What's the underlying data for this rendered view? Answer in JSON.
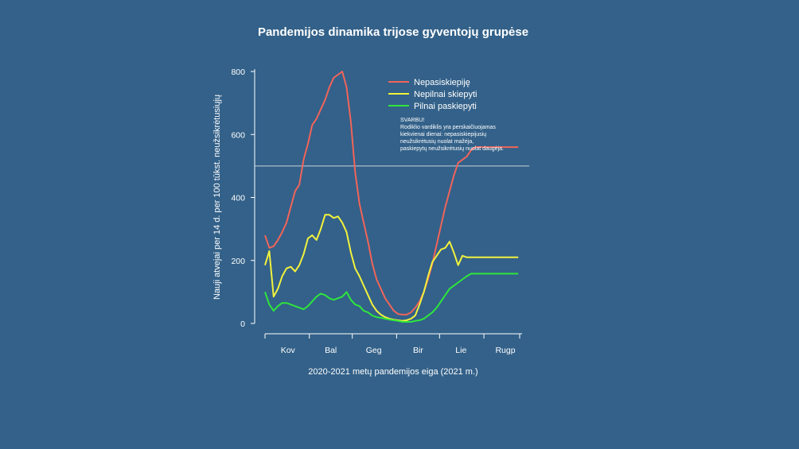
{
  "colors": {
    "background": "#336189",
    "nepasiskiepije": "#f0645a",
    "nepilnai": "#f2f23c",
    "pilnai": "#2ee63c",
    "axis": "#ffffff",
    "reference_line": "#c8d2dc"
  },
  "chart_data": {
    "type": "line",
    "title": "Pandemijos dinamika trijose gyventojų grupėse",
    "xlabel": "2020-2021 metų pandemijos eiga (2021 m.)",
    "ylabel": "Nauji atvejai per 14 d. per 100 tūkst. neužsikrėtusiųjų",
    "ylim": [
      0,
      800
    ],
    "yticks": [
      0,
      200,
      400,
      600,
      800
    ],
    "xlim": [
      0,
      178
    ],
    "month_labels": [
      {
        "label": "Kov",
        "day": 16
      },
      {
        "label": "Bal",
        "day": 46
      },
      {
        "label": "Geg",
        "day": 76
      },
      {
        "label": "Bir",
        "day": 107
      },
      {
        "label": "Lie",
        "day": 137
      },
      {
        "label": "Rugp",
        "day": 168
      }
    ],
    "month_boundaries": [
      0,
      31,
      61,
      92,
      122,
      153,
      178
    ],
    "reference_line": 500,
    "legend_position": "top-right",
    "x": [
      0,
      3,
      6,
      9,
      12,
      15,
      18,
      21,
      24,
      27,
      30,
      33,
      36,
      39,
      42,
      45,
      48,
      51,
      54,
      57,
      60,
      63,
      66,
      69,
      72,
      75,
      78,
      81,
      84,
      87,
      90,
      93,
      96,
      99,
      102,
      105,
      108,
      111,
      114,
      117,
      120,
      123,
      126,
      129,
      132,
      135,
      138,
      141,
      144,
      147,
      150,
      153,
      156,
      159,
      162,
      165,
      168,
      171,
      174,
      177
    ],
    "series": [
      {
        "name": "Nepasiskiepiję",
        "color_key": "nepasiskiepije",
        "values": [
          280,
          240,
          245,
          265,
          290,
          320,
          370,
          420,
          440,
          520,
          570,
          630,
          650,
          680,
          710,
          750,
          780,
          790,
          800,
          750,
          640,
          480,
          380,
          320,
          260,
          190,
          140,
          110,
          80,
          60,
          40,
          30,
          28,
          28,
          35,
          50,
          70,
          100,
          140,
          190,
          250,
          310,
          370,
          420,
          470,
          510,
          520,
          530,
          550,
          560,
          560,
          560,
          560,
          560,
          560,
          560,
          560,
          560,
          560,
          560
        ]
      },
      {
        "name": "Nepilnai skiepyti",
        "color_key": "nepilnai",
        "values": [
          185,
          230,
          85,
          110,
          150,
          175,
          180,
          165,
          185,
          220,
          270,
          280,
          265,
          300,
          345,
          345,
          335,
          340,
          320,
          290,
          225,
          175,
          150,
          120,
          90,
          60,
          40,
          28,
          20,
          15,
          12,
          10,
          8,
          10,
          15,
          25,
          60,
          100,
          150,
          195,
          215,
          235,
          240,
          260,
          225,
          185,
          215,
          210,
          210,
          210,
          210,
          210,
          210,
          210,
          210,
          210,
          210,
          210,
          210,
          210
        ]
      },
      {
        "name": "Pilnai paskiepyti",
        "color_key": "pilnai",
        "values": [
          100,
          60,
          40,
          55,
          65,
          65,
          60,
          55,
          50,
          45,
          55,
          70,
          85,
          95,
          90,
          80,
          75,
          80,
          85,
          100,
          75,
          60,
          55,
          40,
          35,
          25,
          20,
          18,
          15,
          12,
          10,
          8,
          5,
          5,
          5,
          8,
          10,
          15,
          25,
          35,
          50,
          70,
          90,
          110,
          120,
          130,
          140,
          150,
          158,
          158,
          158,
          158,
          158,
          158,
          158,
          158,
          158,
          158,
          158,
          158
        ]
      }
    ],
    "note": {
      "heading": "SVARBU!",
      "lines": [
        "Rodiklio vardiklis yra perskaičiuojamas",
        "kiekvienai dienai: nepasiskiepijusių",
        "neužsikrėtusių nuolat mažėja,",
        "paskiepytų neužsikrėtusių nuolat daugėja."
      ]
    }
  }
}
